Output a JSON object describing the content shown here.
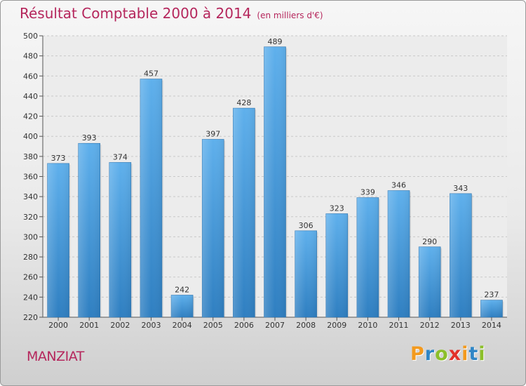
{
  "chart_data": {
    "type": "bar",
    "title": "Résultat Comptable 2000 à 2014",
    "subtitle": "(en milliers d'€)",
    "categories": [
      "2000",
      "2001",
      "2002",
      "2003",
      "2004",
      "2005",
      "2006",
      "2007",
      "2008",
      "2009",
      "2010",
      "2011",
      "2012",
      "2013",
      "2014"
    ],
    "values": [
      373,
      393,
      374,
      457,
      242,
      397,
      428,
      489,
      306,
      323,
      339,
      346,
      290,
      343,
      237
    ],
    "ylim": [
      220,
      500
    ],
    "yticks": [
      220,
      240,
      260,
      280,
      300,
      320,
      340,
      360,
      380,
      400,
      420,
      440,
      460,
      480,
      500
    ],
    "xlabel": "",
    "ylabel": "",
    "grid": true,
    "bar_color": "#3a8fd4"
  },
  "footer": {
    "commune": "MANZIAT",
    "brand_letters": [
      {
        "ch": "P",
        "color": "#f39a1e"
      },
      {
        "ch": "r",
        "color": "#2f86c6"
      },
      {
        "ch": "o",
        "color": "#8cbf2a"
      },
      {
        "ch": "x",
        "color": "#e2322a"
      },
      {
        "ch": "i",
        "color": "#f39a1e"
      },
      {
        "ch": "t",
        "color": "#2f86c6"
      },
      {
        "ch": "i",
        "color": "#8cbf2a"
      }
    ]
  }
}
